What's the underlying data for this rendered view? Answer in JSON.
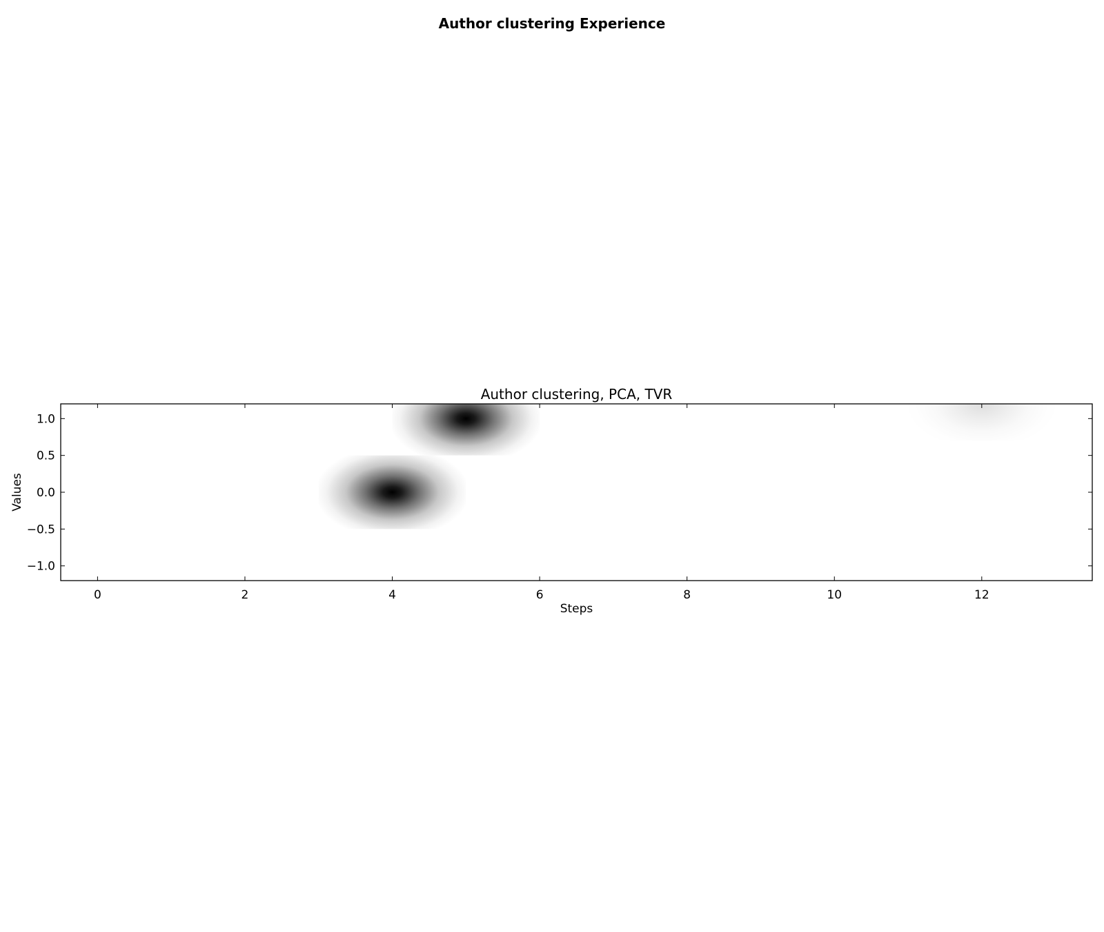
{
  "figure_title": "Author clustering Experience",
  "chart_data": {
    "type": "heatmap",
    "title": "Author clustering, PCA, TVR",
    "xlabel": "Steps",
    "ylabel": "Values",
    "xlim": [
      -0.5,
      13.5
    ],
    "ylim": [
      -1.2,
      1.2
    ],
    "xticks": [
      0,
      2,
      4,
      6,
      8,
      10,
      12
    ],
    "xtick_labels": [
      "0",
      "2",
      "4",
      "6",
      "8",
      "10",
      "12"
    ],
    "yticks": [
      1.0,
      0.5,
      0.0,
      -0.5,
      -1.0
    ],
    "ytick_labels": [
      "1.0",
      "0.5",
      "0.0",
      "−0.5",
      "−1.0"
    ],
    "grid": false,
    "colormap": "gray_r",
    "colors": {
      "low": "#ffffff",
      "high": "#000000",
      "frame": "#000000"
    },
    "cells": [
      {
        "step": 4,
        "value": 0.0,
        "intensity": 1.0
      },
      {
        "step": 5,
        "value": 1.0,
        "intensity": 1.0
      },
      {
        "step": 12,
        "value": 1.2,
        "intensity": 0.12
      }
    ]
  }
}
